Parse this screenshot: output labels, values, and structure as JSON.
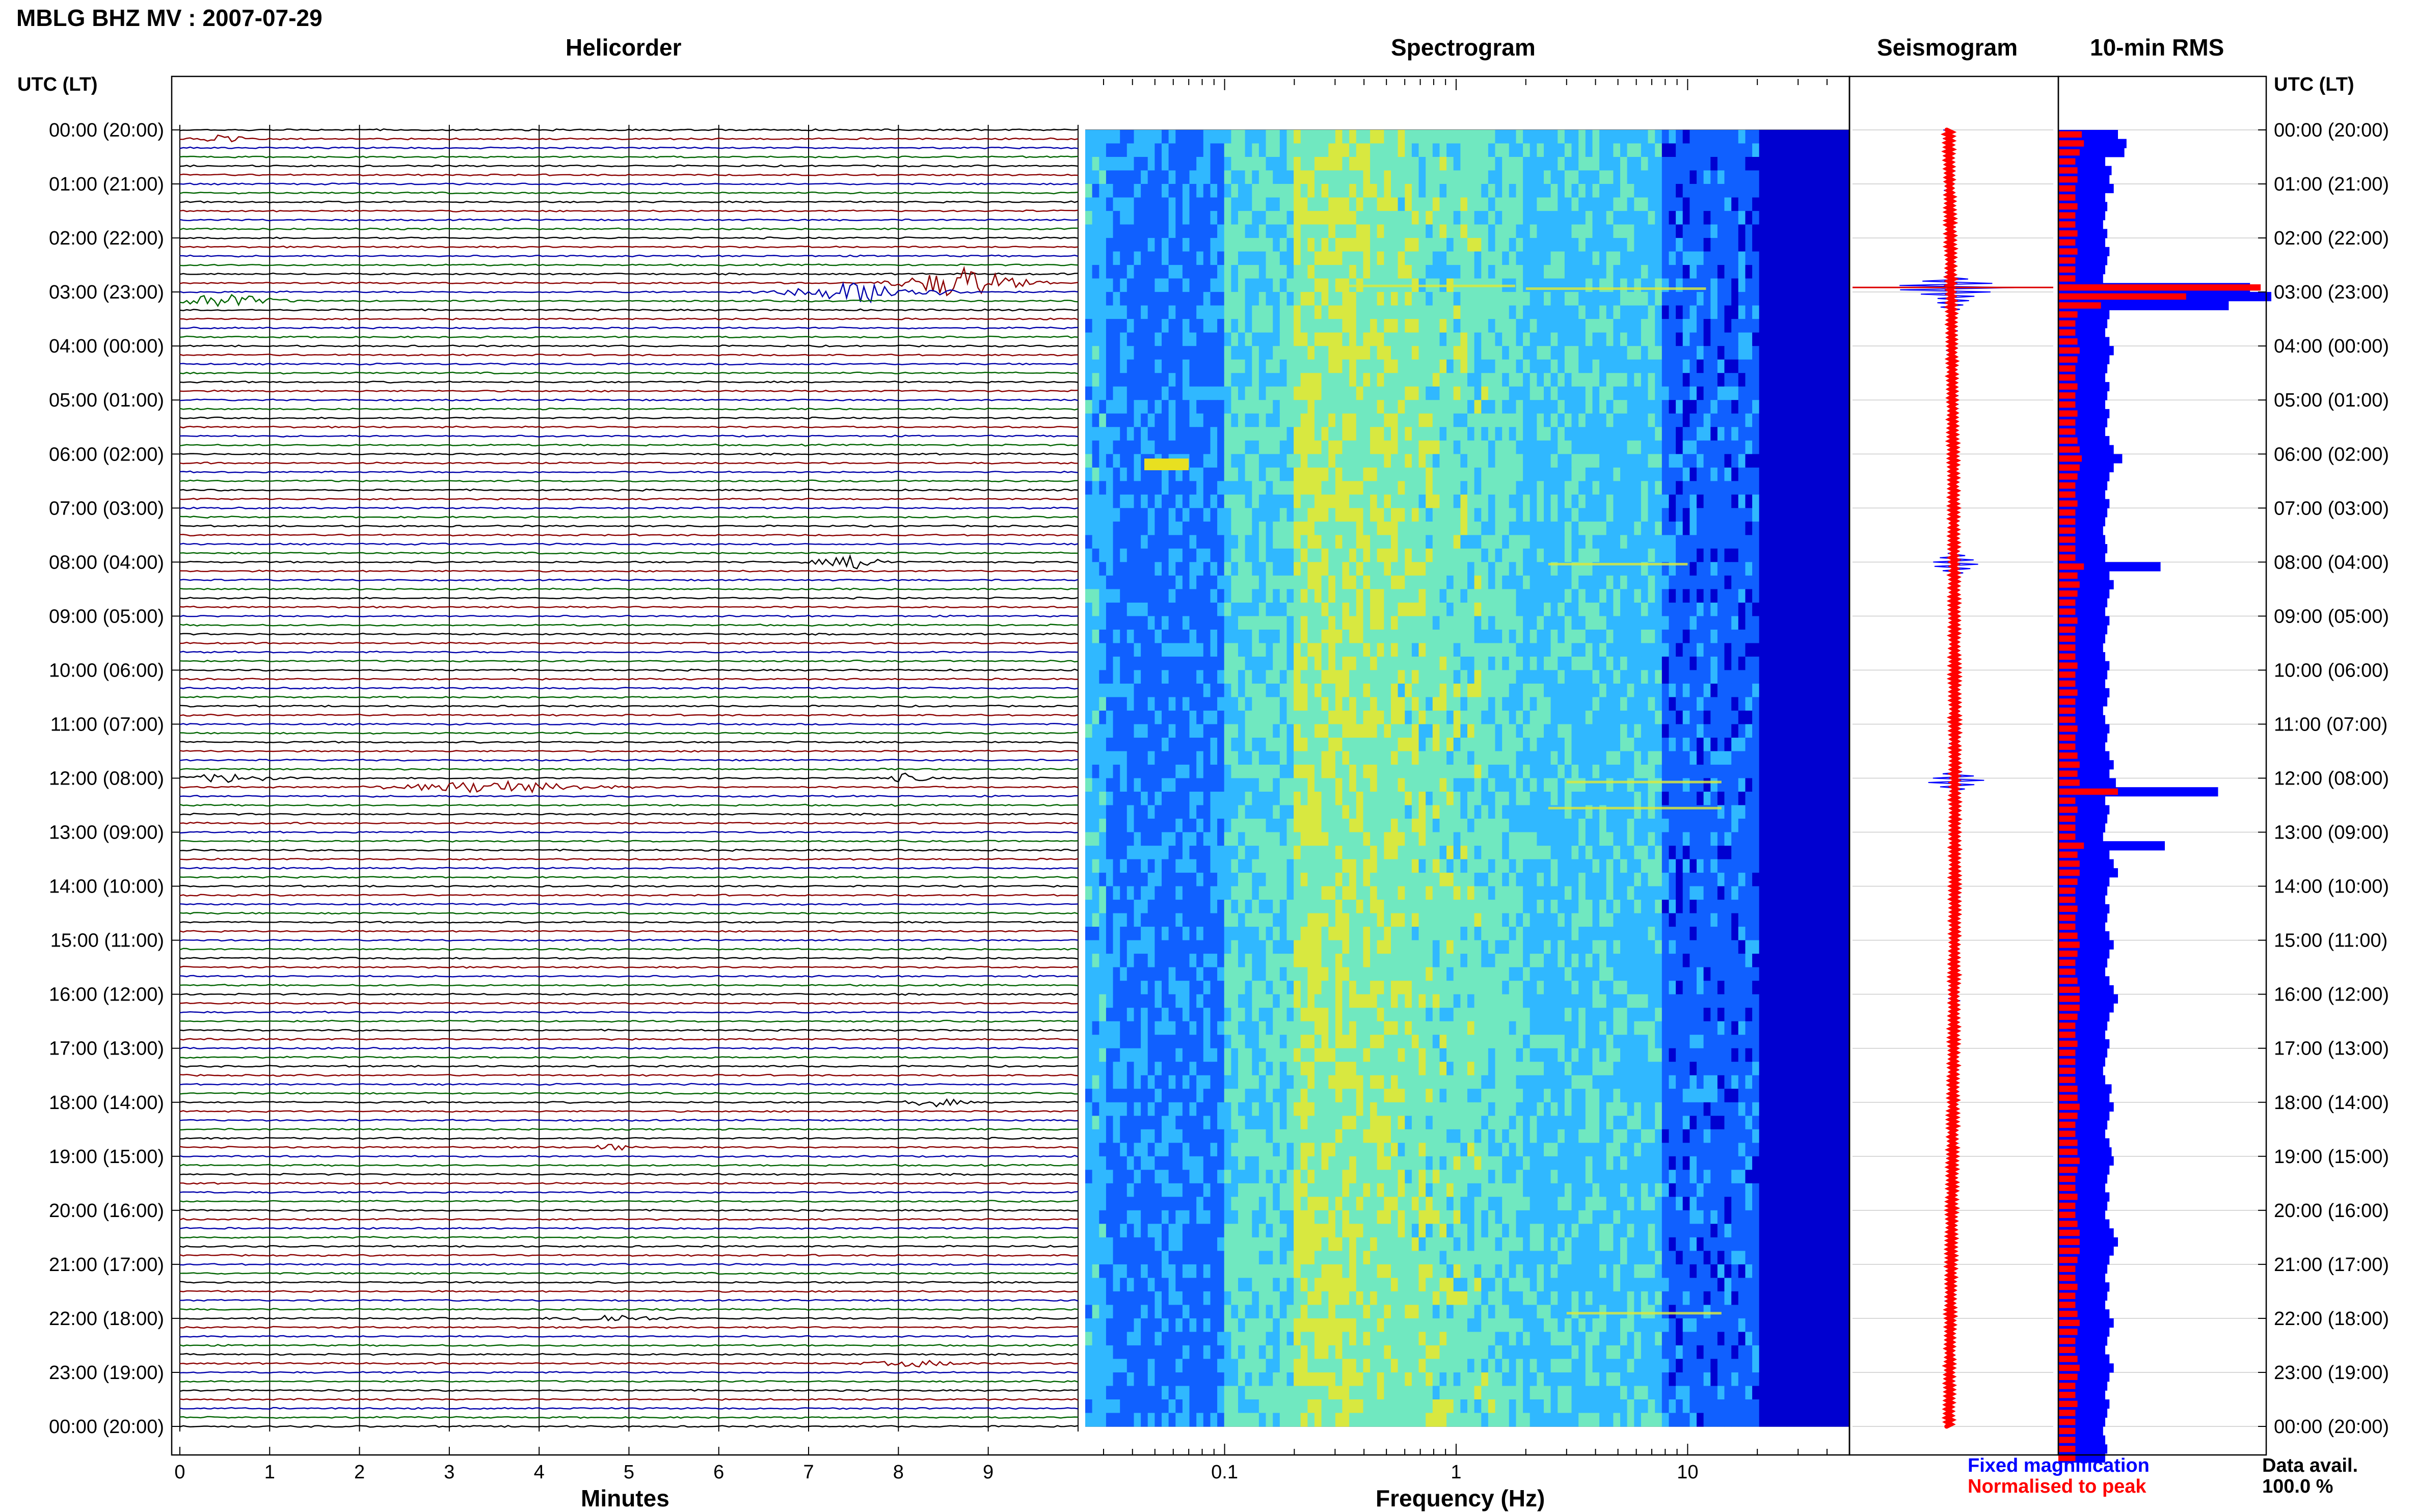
{
  "header": {
    "station_title": "MBLG BHZ MV : 2007-07-29",
    "utc_header_left": "UTC (LT)",
    "utc_header_right": "UTC (LT)"
  },
  "panels": {
    "helicorder": "Helicorder",
    "spectrogram": "Spectrogram",
    "seismogram": "Seismogram",
    "rms": "10-min RMS"
  },
  "legend": {
    "fixed": "Fixed magnification",
    "normalised": "Normalised to peak",
    "fixed_color": "#0000ff",
    "normalised_color": "#ff0000"
  },
  "availability": {
    "label": "Data avail.",
    "value": "100.0 %"
  },
  "chart_data": [
    {
      "type": "line",
      "name": "Helicorder",
      "xlabel": "Minutes",
      "xlim": [
        0,
        10
      ],
      "x_ticks": [
        "0",
        "1",
        "2",
        "3",
        "4",
        "5",
        "6",
        "7",
        "8",
        "9"
      ],
      "trace_colors": [
        "#000000",
        "#8b0000",
        "#0000aa",
        "#006400"
      ],
      "rows_per_hour": 6,
      "hour_labels": [
        "00:00 (20:00)",
        "01:00 (21:00)",
        "02:00 (22:00)",
        "03:00 (23:00)",
        "04:00 (00:00)",
        "05:00 (01:00)",
        "06:00 (02:00)",
        "07:00 (03:00)",
        "08:00 (04:00)",
        "09:00 (05:00)",
        "10:00 (06:00)",
        "11:00 (07:00)",
        "12:00 (08:00)",
        "13:00 (09:00)",
        "14:00 (10:00)",
        "15:00 (11:00)",
        "16:00 (12:00)",
        "17:00 (13:00)",
        "18:00 (14:00)",
        "19:00 (15:00)",
        "20:00 (16:00)",
        "21:00 (17:00)",
        "22:00 (18:00)",
        "23:00 (19:00)",
        "00:00 (20:00)"
      ],
      "events": [
        {
          "row": 1,
          "minute": 0.5,
          "amp": 0.9,
          "width": 0.6
        },
        {
          "row": 17,
          "minute": 8.7,
          "amp": 3.5,
          "width": 1.2
        },
        {
          "row": 18,
          "minute": 7.6,
          "amp": 2.2,
          "width": 1.6
        },
        {
          "row": 19,
          "minute": 0.5,
          "amp": 1.6,
          "width": 1.0
        },
        {
          "row": 48,
          "minute": 7.5,
          "amp": 1.3,
          "width": 0.8
        },
        {
          "row": 73,
          "minute": 3.5,
          "amp": 1.3,
          "width": 2.0
        },
        {
          "row": 72,
          "minute": 0.5,
          "amp": 0.9,
          "width": 1.0
        },
        {
          "row": 72,
          "minute": 8.1,
          "amp": 0.9,
          "width": 0.5
        },
        {
          "row": 108,
          "minute": 8.4,
          "amp": 0.9,
          "width": 0.6
        },
        {
          "row": 113,
          "minute": 4.8,
          "amp": 1.0,
          "width": 0.3
        },
        {
          "row": 132,
          "minute": 4.8,
          "amp": 0.8,
          "width": 1.0
        },
        {
          "row": 137,
          "minute": 8.2,
          "amp": 0.6,
          "width": 1.0
        }
      ]
    },
    {
      "type": "heatmap",
      "name": "Spectrogram",
      "xlabel": "Frequency (Hz)",
      "x_scale": "log",
      "xlim": [
        0.025,
        50
      ],
      "x_ticks": [
        "0.1",
        "1",
        "10"
      ],
      "colormap": [
        "#0000d0",
        "#1060ff",
        "#30b8ff",
        "#70e8c0",
        "#d8e840"
      ],
      "bright_lines_hz": [
        3.0,
        11.0
      ]
    },
    {
      "type": "line",
      "name": "Seismogram",
      "series": [
        {
          "name": "Fixed magnification",
          "color": "#0000ff"
        },
        {
          "name": "Normalised to peak",
          "color": "#ff0000"
        }
      ]
    },
    {
      "type": "bar",
      "name": "10-min RMS",
      "series": [
        {
          "name": "Fixed magnification",
          "color": "#0000ff",
          "values": [
            0.28,
            0.32,
            0.31,
            0.22,
            0.25,
            0.24,
            0.26,
            0.22,
            0.23,
            0.22,
            0.21,
            0.23,
            0.22,
            0.24,
            0.23,
            0.22,
            0.21,
            0.9,
            1.0,
            0.8,
            0.24,
            0.23,
            0.22,
            0.24,
            0.26,
            0.24,
            0.23,
            0.22,
            0.24,
            0.23,
            0.22,
            0.24,
            0.23,
            0.22,
            0.24,
            0.26,
            0.3,
            0.26,
            0.24,
            0.23,
            0.22,
            0.24,
            0.23,
            0.22,
            0.21,
            0.22,
            0.23,
            0.22,
            0.48,
            0.24,
            0.26,
            0.24,
            0.23,
            0.22,
            0.24,
            0.23,
            0.22,
            0.21,
            0.22,
            0.24,
            0.23,
            0.22,
            0.24,
            0.23,
            0.21,
            0.22,
            0.24,
            0.23,
            0.22,
            0.24,
            0.26,
            0.24,
            0.27,
            0.75,
            0.22,
            0.24,
            0.23,
            0.22,
            0.21,
            0.5,
            0.24,
            0.26,
            0.28,
            0.24,
            0.23,
            0.22,
            0.24,
            0.23,
            0.22,
            0.24,
            0.26,
            0.24,
            0.23,
            0.22,
            0.24,
            0.26,
            0.28,
            0.26,
            0.24,
            0.23,
            0.22,
            0.24,
            0.23,
            0.22,
            0.21,
            0.22,
            0.25,
            0.24,
            0.26,
            0.24,
            0.23,
            0.22,
            0.24,
            0.25,
            0.26,
            0.24,
            0.23,
            0.22,
            0.24,
            0.23,
            0.22,
            0.24,
            0.26,
            0.28,
            0.26,
            0.24,
            0.23,
            0.22,
            0.24,
            0.23,
            0.22,
            0.24,
            0.26,
            0.24,
            0.23,
            0.22,
            0.24,
            0.26,
            0.24,
            0.23,
            0.22,
            0.24,
            0.23,
            0.22,
            0.21,
            0.22,
            0.23,
            0.22
          ]
        },
        {
          "name": "Normalised to peak",
          "color": "#ff0000",
          "values": [
            0.11,
            0.12,
            0.1,
            0.08,
            0.09,
            0.09,
            0.08,
            0.08,
            0.09,
            0.08,
            0.08,
            0.09,
            0.08,
            0.09,
            0.08,
            0.08,
            0.08,
            0.95,
            0.6,
            0.2,
            0.09,
            0.08,
            0.08,
            0.09,
            0.1,
            0.09,
            0.08,
            0.08,
            0.09,
            0.08,
            0.08,
            0.09,
            0.08,
            0.08,
            0.09,
            0.1,
            0.11,
            0.1,
            0.09,
            0.08,
            0.08,
            0.09,
            0.08,
            0.08,
            0.08,
            0.08,
            0.08,
            0.08,
            0.12,
            0.09,
            0.1,
            0.09,
            0.08,
            0.08,
            0.09,
            0.08,
            0.08,
            0.08,
            0.08,
            0.09,
            0.08,
            0.08,
            0.09,
            0.08,
            0.08,
            0.08,
            0.09,
            0.08,
            0.08,
            0.09,
            0.1,
            0.09,
            0.1,
            0.28,
            0.08,
            0.09,
            0.08,
            0.08,
            0.08,
            0.12,
            0.09,
            0.1,
            0.1,
            0.09,
            0.08,
            0.08,
            0.09,
            0.08,
            0.08,
            0.09,
            0.1,
            0.09,
            0.08,
            0.08,
            0.09,
            0.1,
            0.1,
            0.1,
            0.09,
            0.08,
            0.08,
            0.09,
            0.08,
            0.08,
            0.08,
            0.08,
            0.09,
            0.09,
            0.1,
            0.09,
            0.08,
            0.08,
            0.09,
            0.09,
            0.1,
            0.09,
            0.08,
            0.08,
            0.09,
            0.08,
            0.08,
            0.09,
            0.1,
            0.1,
            0.1,
            0.09,
            0.08,
            0.08,
            0.09,
            0.08,
            0.08,
            0.09,
            0.1,
            0.09,
            0.08,
            0.08,
            0.09,
            0.1,
            0.09,
            0.08,
            0.08,
            0.09,
            0.08,
            0.08,
            0.08,
            0.08,
            0.08,
            0.08
          ]
        }
      ]
    }
  ]
}
